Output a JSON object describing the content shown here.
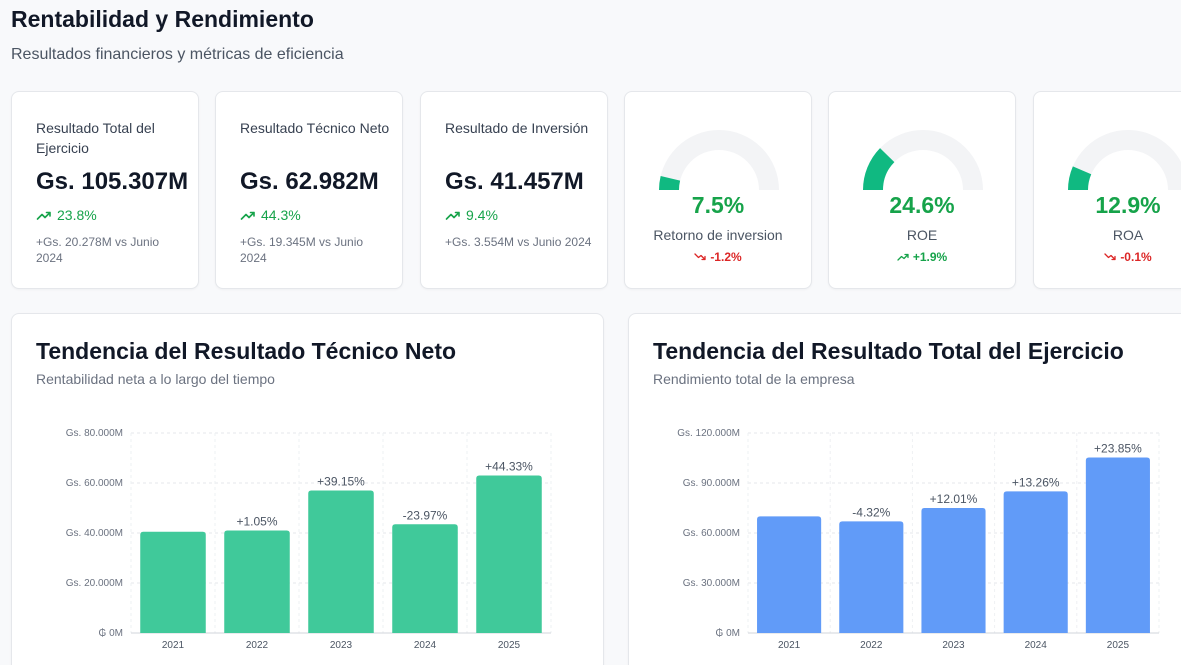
{
  "header": {
    "title": "Rentabilidad y Rendimiento",
    "subtitle": "Resultados financieros y métricas de eficiencia"
  },
  "kpis": [
    {
      "title": "Resultado Total del Ejercicio",
      "value": "Gs. 105.307M",
      "change": "23.8%",
      "note": "+Gs. 20.278M vs Junio 2024"
    },
    {
      "title": "Resultado Técnico Neto",
      "value": "Gs. 62.982M",
      "change": "44.3%",
      "note": "+Gs. 19.345M vs Junio 2024"
    },
    {
      "title": "Resultado de Inversión",
      "value": "Gs. 41.457M",
      "change": "9.4%",
      "note": "+Gs. 3.554M vs Junio 2024"
    }
  ],
  "gauges": [
    {
      "value": "7.5%",
      "fraction": 0.075,
      "label": "Retorno de inversion",
      "delta": "-1.2%",
      "direction": "down"
    },
    {
      "value": "24.6%",
      "fraction": 0.246,
      "label": "ROE",
      "delta": "+1.9%",
      "direction": "up"
    },
    {
      "value": "12.9%",
      "fraction": 0.129,
      "label": "ROA",
      "delta": "-0.1%",
      "direction": "down"
    }
  ],
  "colors": {
    "positive": "#16a34a",
    "negative": "#dc2626",
    "gauge_fill": "#10b981",
    "gauge_track": "#f3f4f6",
    "bar_green": "#40c99a",
    "bar_blue": "#619bf8"
  },
  "chart_data": [
    {
      "type": "bar",
      "title": "Tendencia del Resultado Técnico Neto",
      "subtitle": "Rentabilidad neta a lo largo del tiempo",
      "categories": [
        "2021",
        "2022",
        "2023",
        "2024",
        "2025"
      ],
      "values": [
        40500,
        41000,
        57000,
        43500,
        62982
      ],
      "bar_labels": [
        "",
        "+1.05%",
        "+39.15%",
        "-23.97%",
        "+44.33%"
      ],
      "yticks": [
        "₲ 0M",
        "Gs. 20.000M",
        "Gs. 40.000M",
        "Gs. 60.000M",
        "Gs. 80.000M"
      ],
      "ylim": [
        0,
        80000
      ],
      "grid": true,
      "color": "#40c99a"
    },
    {
      "type": "bar",
      "title": "Tendencia del Resultado Total del Ejercicio",
      "subtitle": "Rendimiento total de la empresa",
      "categories": [
        "2021",
        "2022",
        "2023",
        "2024",
        "2025"
      ],
      "values": [
        70000,
        67000,
        75000,
        85000,
        105307
      ],
      "bar_labels": [
        "",
        "-4.32%",
        "+12.01%",
        "+13.26%",
        "+23.85%"
      ],
      "yticks": [
        "₲ 0M",
        "Gs. 30.000M",
        "Gs. 60.000M",
        "Gs. 90.000M",
        "Gs. 120.000M"
      ],
      "ylim": [
        0,
        120000
      ],
      "grid": true,
      "color": "#619bf8"
    }
  ]
}
